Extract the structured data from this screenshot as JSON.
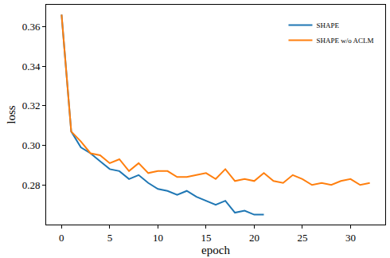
{
  "chart_data": {
    "type": "line",
    "x_label": "epoch",
    "y_label": "loss",
    "xlim": [
      -1.6,
      33.6
    ],
    "ylim": [
      0.26,
      0.371
    ],
    "xticks": [
      0,
      5,
      10,
      15,
      20,
      25,
      30
    ],
    "yticks": [
      0.28,
      {
        "value": 0.3,
        "label": "0.30"
      },
      0.32,
      0.34,
      0.36
    ],
    "grid": false,
    "legend": "upper right",
    "series": [
      {
        "name": "SHAPE",
        "color": "#1f77b4",
        "x": [
          0,
          1,
          2,
          3,
          4,
          5,
          6,
          7,
          8,
          9,
          10,
          11,
          12,
          13,
          14,
          15,
          16,
          17,
          18,
          19,
          20,
          21
        ],
        "values": [
          0.366,
          0.307,
          0.299,
          0.296,
          0.292,
          0.288,
          0.287,
          0.283,
          0.285,
          0.281,
          0.278,
          0.277,
          0.275,
          0.277,
          0.274,
          0.272,
          0.27,
          0.272,
          0.266,
          0.267,
          0.265,
          0.265
        ]
      },
      {
        "name": "SHAPE w/o ACLM",
        "color": "#ff7f0e",
        "x": [
          0,
          1,
          2,
          3,
          4,
          5,
          6,
          7,
          8,
          9,
          10,
          11,
          12,
          13,
          14,
          15,
          16,
          17,
          18,
          19,
          20,
          21,
          22,
          23,
          24,
          25,
          26,
          27,
          28,
          29,
          30,
          31,
          32
        ],
        "values": [
          0.366,
          0.307,
          0.302,
          0.296,
          0.295,
          0.291,
          0.293,
          0.287,
          0.291,
          0.286,
          0.287,
          0.287,
          0.284,
          0.284,
          0.285,
          0.286,
          0.283,
          0.288,
          0.282,
          0.283,
          0.282,
          0.286,
          0.282,
          0.281,
          0.285,
          0.283,
          0.28,
          0.281,
          0.28,
          0.282,
          0.283,
          0.28,
          0.281
        ]
      }
    ]
  }
}
